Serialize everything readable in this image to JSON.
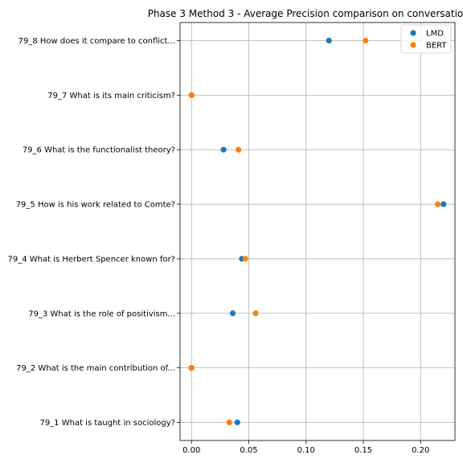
{
  "chart_data": {
    "type": "scatter",
    "title": "Phase 3 Method 3 - Average Precision comparison on conversatio",
    "xlabel": "",
    "ylabel": "",
    "xlim": [
      -0.01,
      0.23
    ],
    "x_ticks": [
      0.0,
      0.05,
      0.1,
      0.15,
      0.2
    ],
    "x_tick_labels": [
      "0.00",
      "0.05",
      "0.10",
      "0.15",
      "0.20"
    ],
    "categories": [
      "79_1 What is taught in sociology?",
      "79_2 What is the main contribution of...",
      "79_3 What is the role of positivism...",
      "79_4 What is Herbert Spencer known for?",
      "79_5 How is his work related to Comte?",
      "79_6 What is the functionalist theory?",
      "79_7 What is its main criticism?",
      "79_8 How does it compare to conflict..."
    ],
    "series": [
      {
        "name": "LMD",
        "color": "#1f77b4",
        "values": [
          0.04,
          0.0,
          0.036,
          0.044,
          0.22,
          0.028,
          0.0,
          0.12
        ]
      },
      {
        "name": "BERT",
        "color": "#ff7f0e",
        "values": [
          0.033,
          0.0,
          0.056,
          0.047,
          0.215,
          0.041,
          0.0,
          0.152
        ]
      }
    ],
    "grid": true,
    "legend_position": "top-right"
  }
}
